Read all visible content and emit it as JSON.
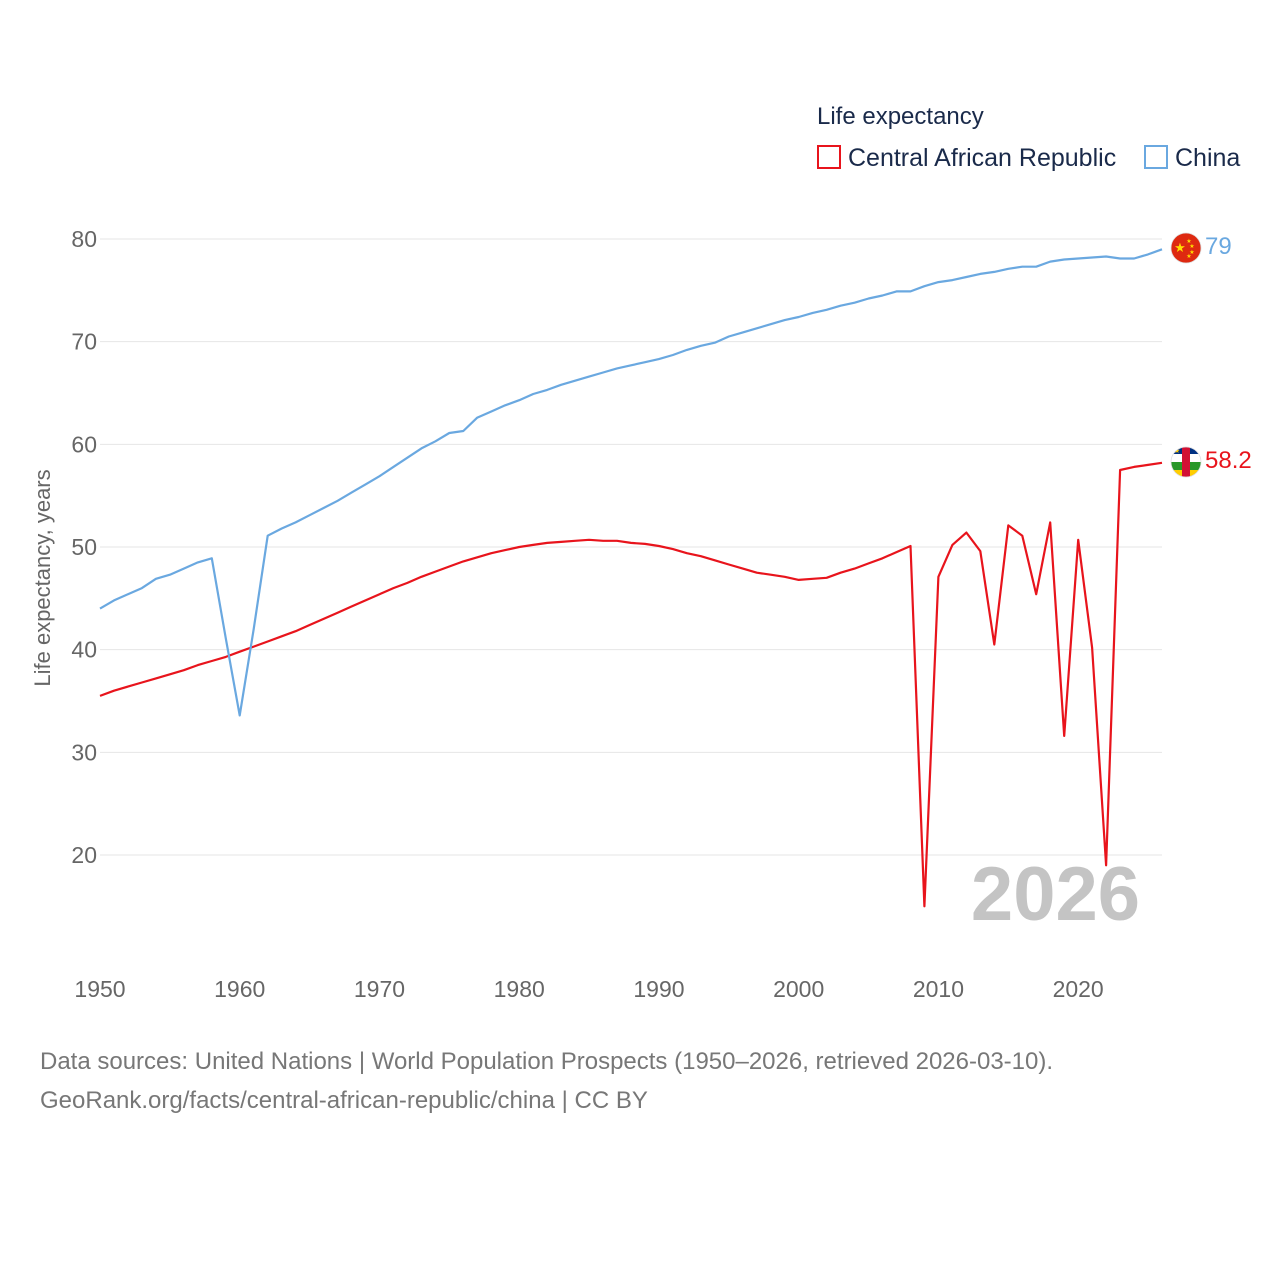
{
  "chart_data": {
    "type": "line",
    "title": "Life expectancy",
    "ylabel": "Life expectancy, years",
    "xlabel": "",
    "xlim": [
      1950,
      2026
    ],
    "ylim": [
      10,
      85
    ],
    "x_ticks": [
      "1950",
      "1960",
      "1970",
      "1980",
      "1990",
      "2000",
      "2010",
      "2020"
    ],
    "y_ticks": [
      "20",
      "30",
      "40",
      "50",
      "60",
      "70",
      "80"
    ],
    "legend": {
      "placement": "top-right",
      "title": "Life expectancy"
    },
    "current_year": "2026",
    "x": [
      1950,
      1951,
      1952,
      1953,
      1954,
      1955,
      1956,
      1957,
      1958,
      1959,
      1960,
      1961,
      1962,
      1963,
      1964,
      1965,
      1966,
      1967,
      1968,
      1969,
      1970,
      1971,
      1972,
      1973,
      1974,
      1975,
      1976,
      1977,
      1978,
      1979,
      1980,
      1981,
      1982,
      1983,
      1984,
      1985,
      1986,
      1987,
      1988,
      1989,
      1990,
      1991,
      1992,
      1993,
      1994,
      1995,
      1996,
      1997,
      1998,
      1999,
      2000,
      2001,
      2002,
      2003,
      2004,
      2005,
      2006,
      2007,
      2008,
      2009,
      2010,
      2011,
      2012,
      2013,
      2014,
      2015,
      2016,
      2017,
      2018,
      2019,
      2020,
      2021,
      2022,
      2023,
      2024,
      2025,
      2026
    ],
    "series": [
      {
        "name": "Central African Republic",
        "color": "#e8141c",
        "end_label": "58.2",
        "flag_icon": "central-african-republic-flag-icon",
        "values": [
          35.5,
          36.0,
          36.4,
          36.8,
          37.2,
          37.6,
          38.0,
          38.5,
          38.9,
          39.3,
          39.8,
          40.3,
          40.8,
          41.3,
          41.8,
          42.4,
          43.0,
          43.6,
          44.2,
          44.8,
          45.4,
          46.0,
          46.5,
          47.1,
          47.6,
          48.1,
          48.6,
          49.0,
          49.4,
          49.7,
          50.0,
          50.2,
          50.4,
          50.5,
          50.6,
          50.7,
          50.6,
          50.6,
          50.4,
          50.3,
          50.1,
          49.8,
          49.4,
          49.1,
          48.7,
          48.3,
          47.9,
          47.5,
          47.3,
          47.1,
          46.8,
          46.9,
          47.0,
          47.5,
          47.9,
          48.4,
          48.9,
          49.5,
          50.1,
          15.0,
          47.1,
          50.2,
          51.4,
          49.6,
          40.5,
          52.1,
          51.1,
          45.4,
          52.4,
          31.6,
          50.7,
          40.2,
          19.0,
          57.5,
          57.8,
          58.0,
          58.2
        ]
      },
      {
        "name": "China",
        "color": "#6aa8e0",
        "end_label": "79",
        "flag_icon": "china-flag-icon",
        "values": [
          44.0,
          44.8,
          45.4,
          46.0,
          46.9,
          47.3,
          47.9,
          48.5,
          48.9,
          41.1,
          33.6,
          42.0,
          51.1,
          51.8,
          52.4,
          53.1,
          53.8,
          54.5,
          55.3,
          56.1,
          56.9,
          57.8,
          58.7,
          59.6,
          60.3,
          61.1,
          61.3,
          62.6,
          63.2,
          63.8,
          64.3,
          64.9,
          65.3,
          65.8,
          66.2,
          66.6,
          67.0,
          67.4,
          67.7,
          68.0,
          68.3,
          68.7,
          69.2,
          69.6,
          69.9,
          70.5,
          70.9,
          71.3,
          71.7,
          72.1,
          72.4,
          72.8,
          73.1,
          73.5,
          73.8,
          74.2,
          74.5,
          74.9,
          74.9,
          75.4,
          75.8,
          76.0,
          76.3,
          76.6,
          76.8,
          77.1,
          77.3,
          77.3,
          77.8,
          78.0,
          78.1,
          78.2,
          78.3,
          78.1,
          78.1,
          78.5,
          79.0
        ]
      }
    ]
  },
  "footer": {
    "source_line": "Data sources: United Nations | World Population Prospects (1950–2026, retrieved 2026-03-10).",
    "url_line": "GeoRank.org/facts/central-african-republic/china | CC BY"
  }
}
